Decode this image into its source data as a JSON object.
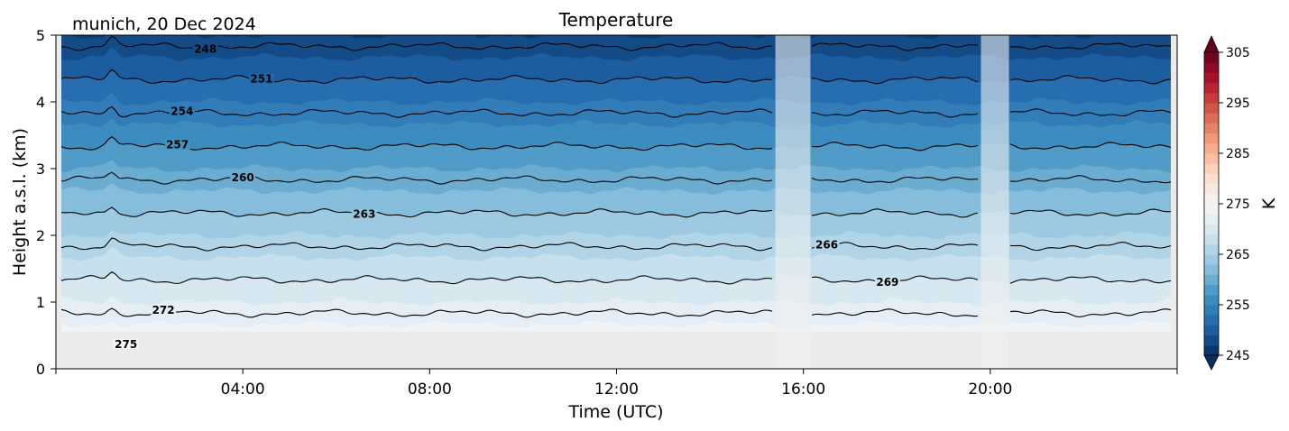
{
  "chart_data": {
    "type": "heatmap",
    "title": "Temperature",
    "subtitle": "munich, 20 Dec 2024",
    "xlabel": "Time (UTC)",
    "ylabel": "Height a.s.l. (km)",
    "x_unit": "hours UTC",
    "xlim": [
      0,
      24
    ],
    "ylim": [
      0,
      5
    ],
    "x_ticks": [
      {
        "value": 4,
        "label": "04:00"
      },
      {
        "value": 8,
        "label": "08:00"
      },
      {
        "value": 12,
        "label": "12:00"
      },
      {
        "value": 16,
        "label": "16:00"
      },
      {
        "value": 20,
        "label": "20:00"
      }
    ],
    "y_ticks": [
      {
        "value": 0,
        "label": "0"
      },
      {
        "value": 1,
        "label": "1"
      },
      {
        "value": 2,
        "label": "2"
      },
      {
        "value": 3,
        "label": "3"
      },
      {
        "value": 4,
        "label": "4"
      },
      {
        "value": 5,
        "label": "5"
      }
    ],
    "colorbar": {
      "label": "K",
      "min": 245,
      "max": 305,
      "step": 2,
      "extend": "both",
      "colormap": "RdBu_r",
      "ticks": [
        {
          "value": 245,
          "label": "245"
        },
        {
          "value": 255,
          "label": "255"
        },
        {
          "value": 265,
          "label": "265"
        },
        {
          "value": 275,
          "label": "275"
        },
        {
          "value": 285,
          "label": "285"
        },
        {
          "value": 295,
          "label": "295"
        },
        {
          "value": 305,
          "label": "305"
        }
      ]
    },
    "surface_temperature": 277,
    "lapse_rate_K_per_km": 6,
    "data_bottom_km": 0.55,
    "missing_data_color": "#ebebeb",
    "contour_color": "#000000",
    "contour_levels": [
      {
        "value": 248,
        "label": "248",
        "label_x": 3.2
      },
      {
        "value": 251,
        "label": "251",
        "label_x": 4.4
      },
      {
        "value": 254,
        "label": "254",
        "label_x": 2.7
      },
      {
        "value": 257,
        "label": "257",
        "label_x": 2.6
      },
      {
        "value": 260,
        "label": "260",
        "label_x": 4.0
      },
      {
        "value": 263,
        "label": "263",
        "label_x": 6.6
      },
      {
        "value": 266,
        "label": "266",
        "label_x": 16.5
      },
      {
        "value": 269,
        "label": "269",
        "label_x": 17.8
      },
      {
        "value": 272,
        "label": "272",
        "label_x": 2.3
      },
      {
        "value": 275,
        "label": "275",
        "label_x": 1.5
      }
    ],
    "gaps": [
      {
        "start": 15.4,
        "end": 16.15
      },
      {
        "start": 19.8,
        "end": 20.4
      }
    ]
  }
}
